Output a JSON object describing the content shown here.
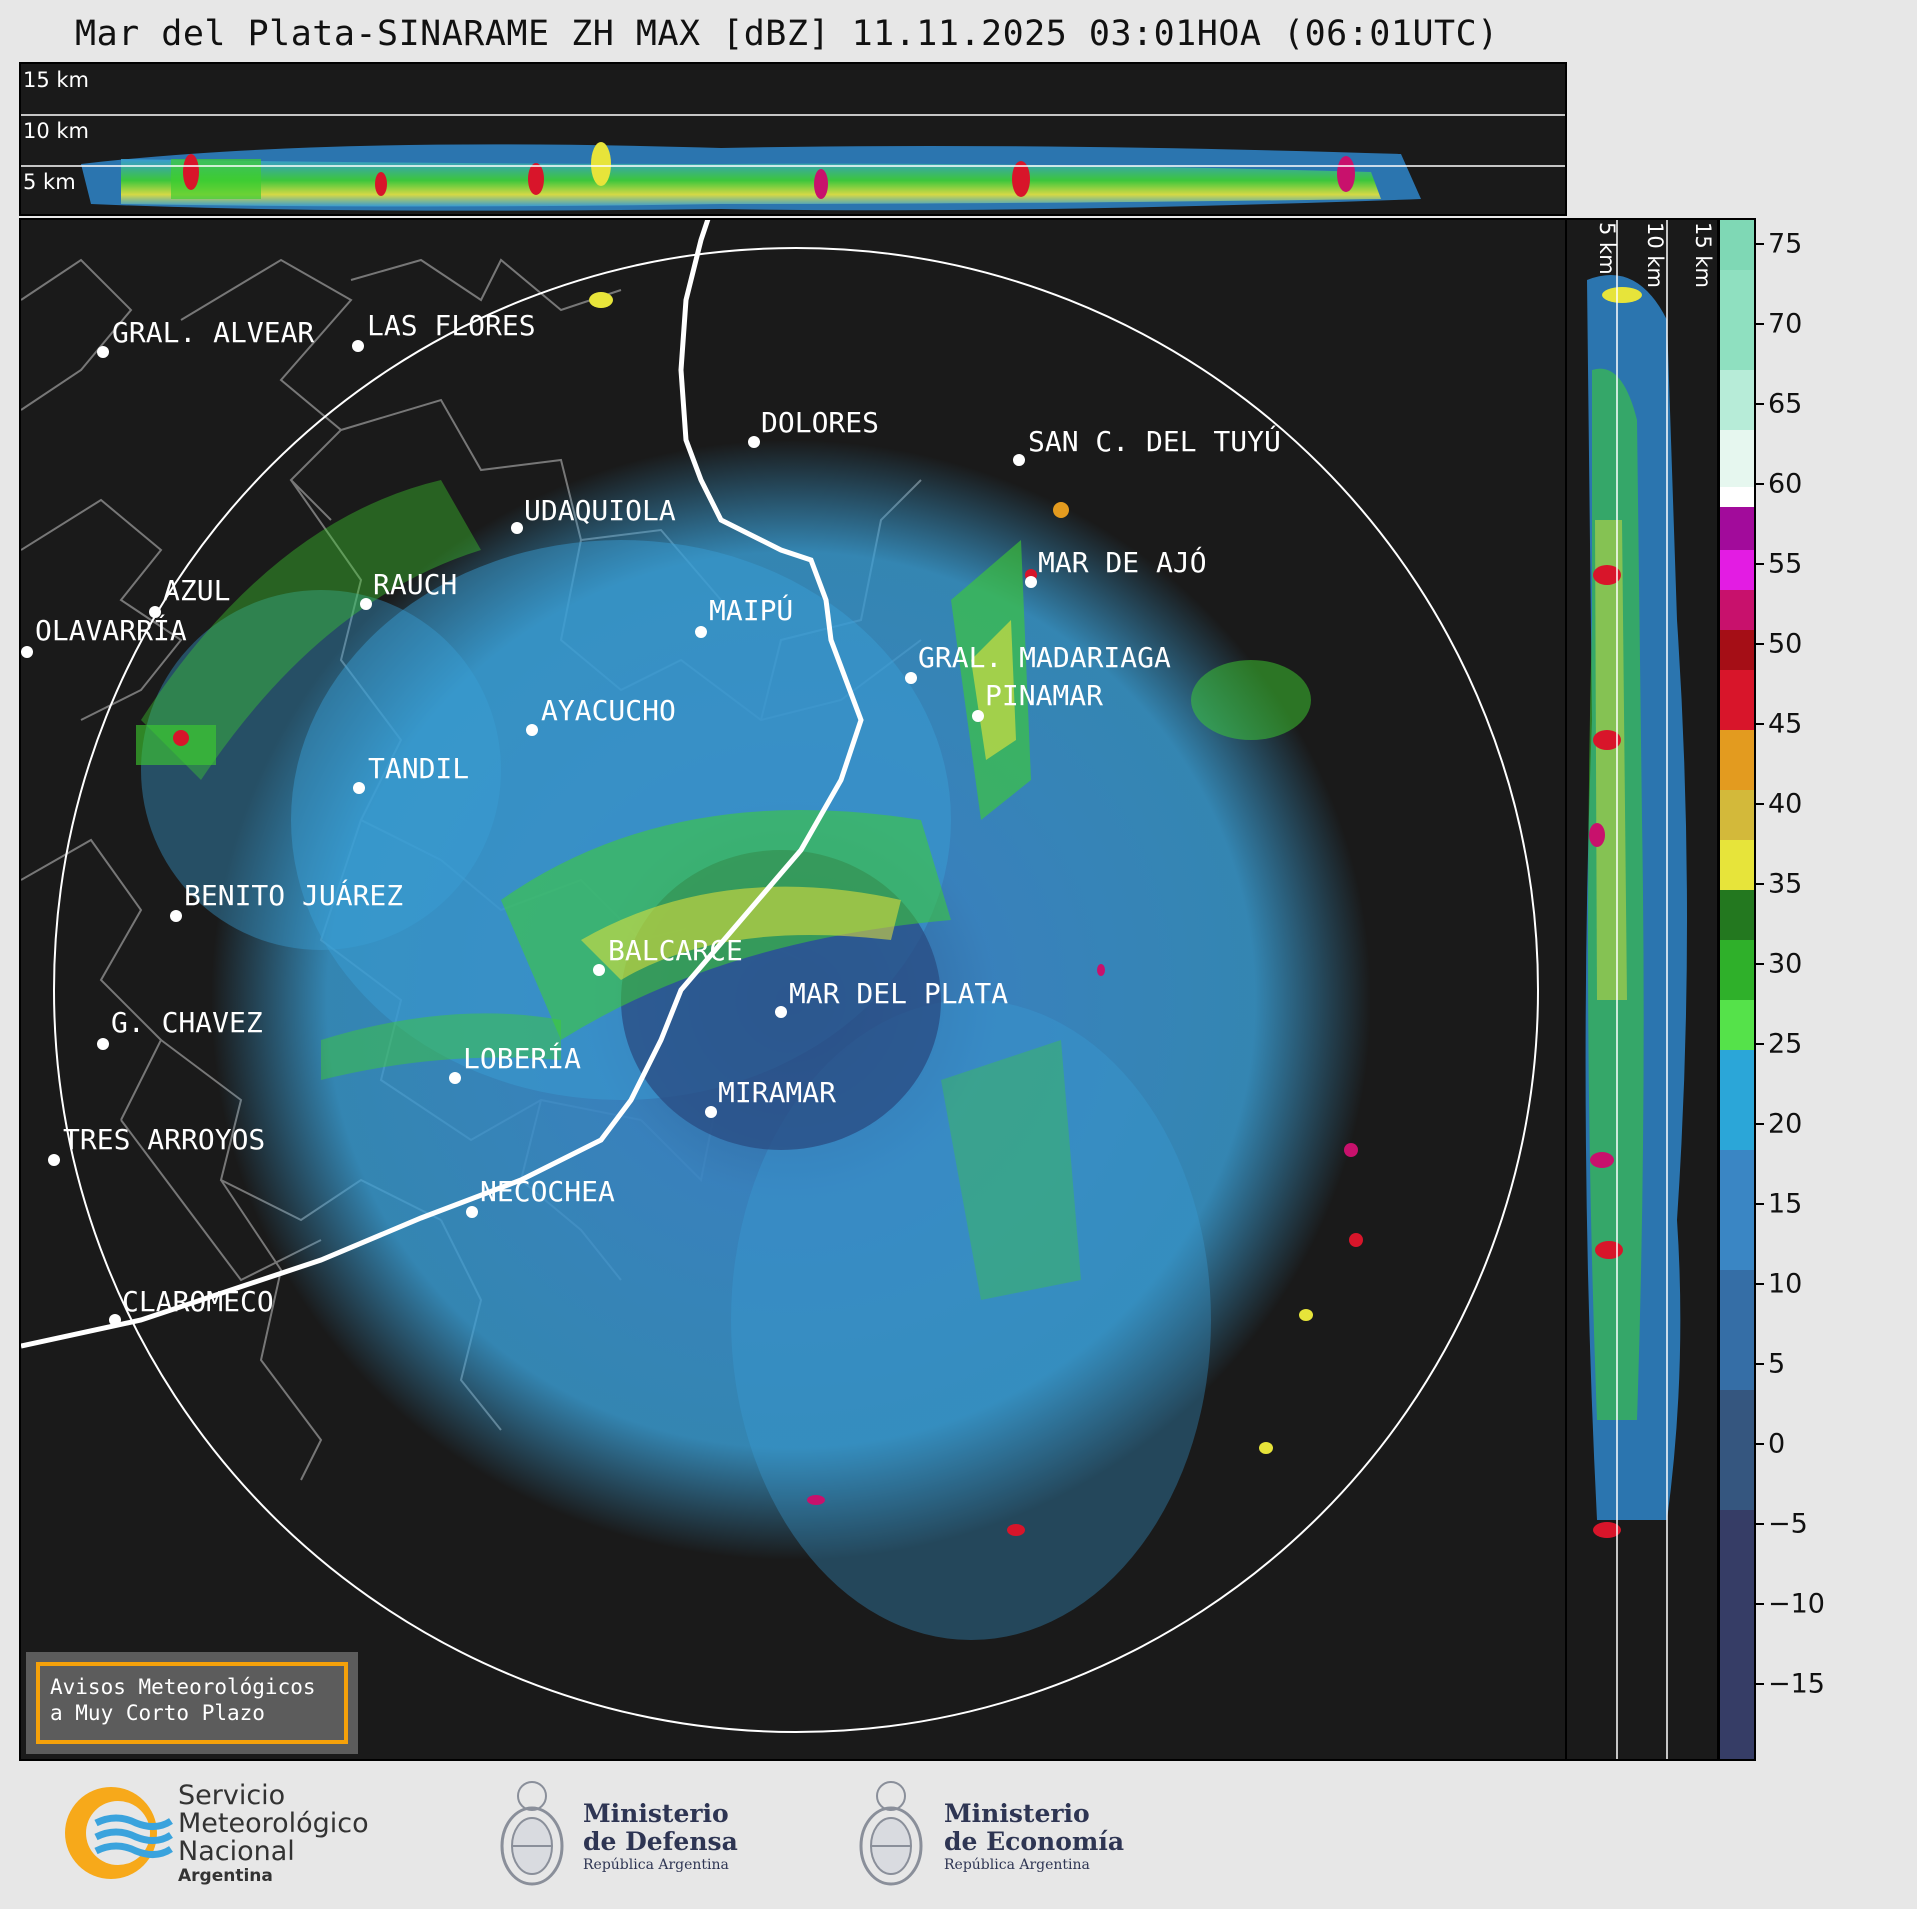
{
  "title": "Mar del Plata-SINARAME ZH MAX [dBZ] 11.11.2025 03:01HOA (06:01UTC)",
  "height_labels": [
    "15 km",
    "10 km",
    "5 km"
  ],
  "colorbar": {
    "ticks": [
      "75",
      "70",
      "65",
      "60",
      "55",
      "50",
      "45",
      "40",
      "35",
      "30",
      "25",
      "20",
      "15",
      "10",
      "5",
      "0",
      "−5",
      "−10",
      "−15"
    ],
    "colors": {
      "dark_bg": "#1a1a1a",
      "light_blue": "#3a9fd6",
      "green": "#3ecf2f",
      "yellow": "#e7e43a",
      "red": "#d8152a",
      "magenta": "#e31ce3",
      "white": "#ffffff",
      "mint": "#8fe0c0"
    }
  },
  "cities": [
    {
      "name": "GRAL. ALVEAR"
    },
    {
      "name": "LAS FLORES"
    },
    {
      "name": "DOLORES"
    },
    {
      "name": "SAN C. DEL TUYÚ"
    },
    {
      "name": "UDAQUIOLA"
    },
    {
      "name": "MAR DE AJÓ"
    },
    {
      "name": "AZUL"
    },
    {
      "name": "RAUCH"
    },
    {
      "name": "MAIPÚ"
    },
    {
      "name": "OLAVARRÍA"
    },
    {
      "name": "GRAL. MADARIAGA"
    },
    {
      "name": "PINAMAR"
    },
    {
      "name": "AYACUCHO"
    },
    {
      "name": "TANDIL"
    },
    {
      "name": "BENITO JUÁREZ"
    },
    {
      "name": "BALCARCE"
    },
    {
      "name": "MAR DEL PLATA"
    },
    {
      "name": "G. CHAVEZ"
    },
    {
      "name": "LOBERÍA"
    },
    {
      "name": "MIRAMAR"
    },
    {
      "name": "TRES ARROYOS"
    },
    {
      "name": "NECOCHEA"
    },
    {
      "name": "CLAROMECO"
    }
  ],
  "avisos": {
    "line1": "Avisos Meteorológicos",
    "line2": "a Muy Corto Plazo"
  },
  "footer": {
    "smn": {
      "line1": "Servicio",
      "line2": "Meteorológico",
      "line3": "Nacional",
      "line4": "Argentina"
    },
    "defensa": {
      "line1": "Ministerio",
      "line2": "de Defensa",
      "line3": "República Argentina"
    },
    "economia": {
      "line1": "Ministerio",
      "line2": "de Economía",
      "line3": "República Argentina"
    }
  }
}
